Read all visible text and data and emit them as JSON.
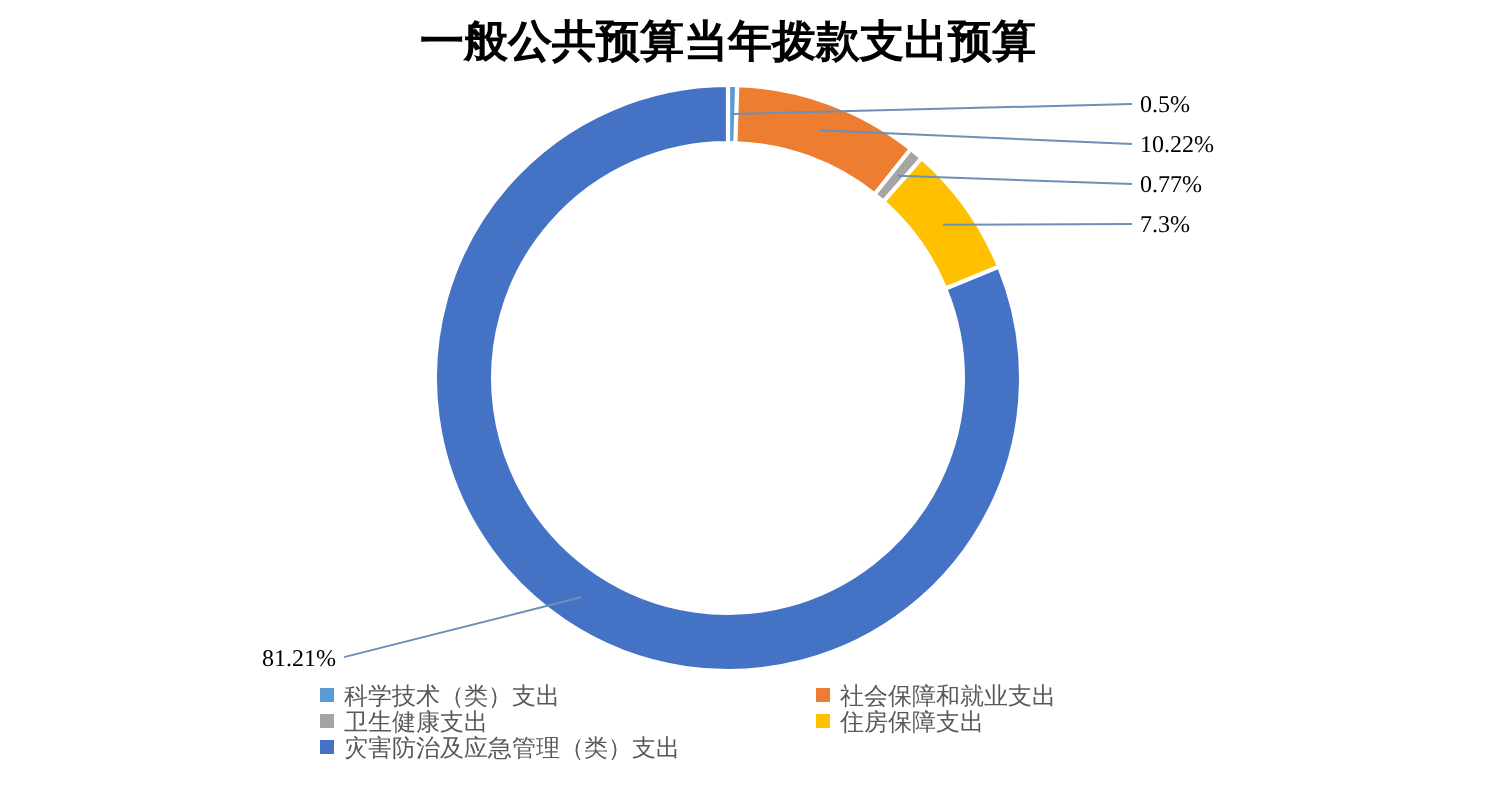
{
  "chart_data": {
    "type": "donut",
    "title": "一般公共预算当年拨款支出预算",
    "categories": [
      "科学技术（类）支出",
      "社会保障和就业支出",
      "卫生健康支出",
      "住房保障支出",
      "灾害防治及应急管理（类）支出"
    ],
    "values": [
      0.5,
      10.22,
      0.77,
      7.3,
      81.21
    ],
    "colors": [
      "#5b9bd5",
      "#ed7d31",
      "#a5a5a5",
      "#ffc000",
      "#4472c4"
    ],
    "value_labels": [
      "0.5%",
      "10.22%",
      "0.77%",
      "7.3%",
      "81.21%"
    ],
    "legend": "bottom"
  }
}
